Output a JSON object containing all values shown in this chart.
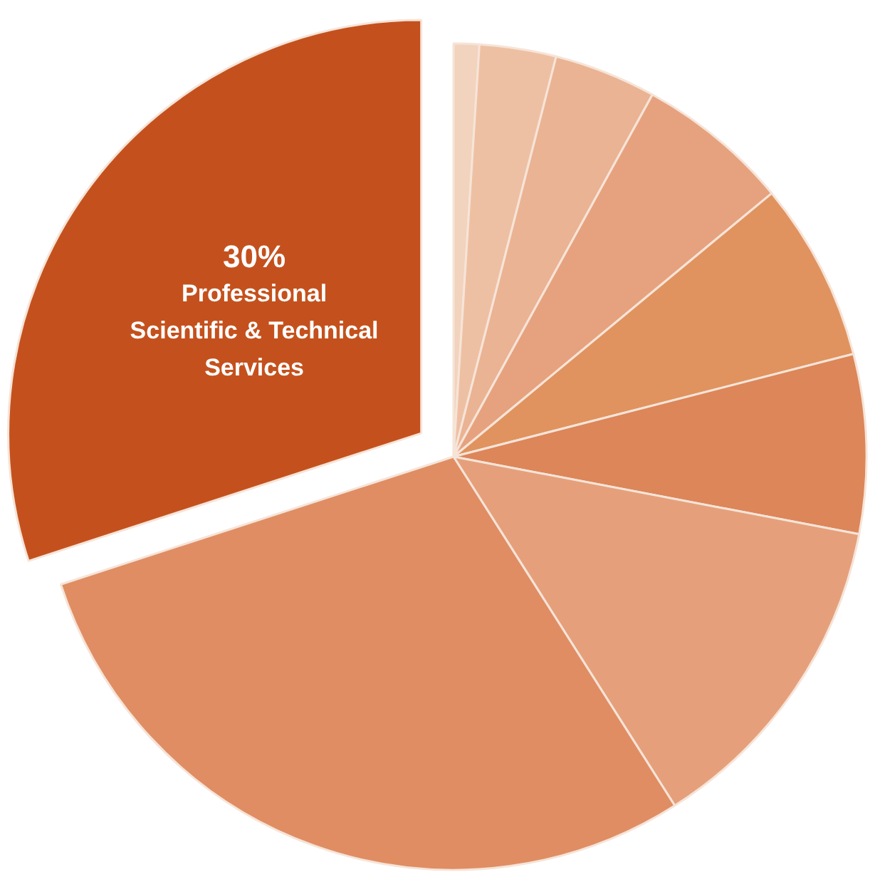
{
  "chart_data": {
    "type": "pie",
    "categories": [
      null,
      null,
      null,
      null,
      null,
      null,
      null,
      null,
      "Professional Scientific & Technical Services"
    ],
    "values": [
      1,
      3,
      4,
      6,
      7,
      7,
      13,
      29,
      30
    ],
    "colors": [
      "#f2d3bd",
      "#eec0a3",
      "#eab393",
      "#e6a27e",
      "#e0935f",
      "#dc8659",
      "#e5a07b",
      "#e08d63",
      "#c4511d"
    ],
    "value_labels": [
      null,
      null,
      null,
      null,
      null,
      null,
      null,
      null,
      "30%"
    ]
  }
}
